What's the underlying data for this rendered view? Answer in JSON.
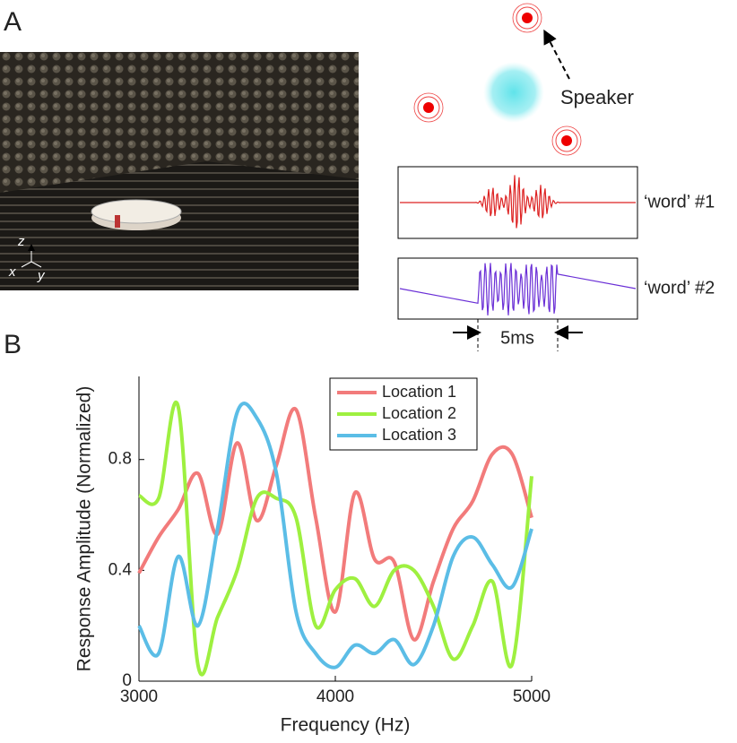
{
  "panel_a": {
    "label": "A",
    "axis_labels": [
      "z",
      "x",
      "y"
    ],
    "speaker": "Speaker",
    "word1": "‘word’ #1",
    "word2": "‘word’ #2",
    "duration": "5ms"
  },
  "panel_b": {
    "label": "B"
  },
  "chart_data": {
    "type": "line",
    "x_label": "Frequency (Hz)",
    "y_label": "Response Amplitude (Normalized)",
    "x": [
      3000,
      3100,
      3200,
      3300,
      3400,
      3500,
      3600,
      3700,
      3800,
      3900,
      4000,
      4100,
      4200,
      4300,
      4400,
      4500,
      4600,
      4700,
      4800,
      4900,
      5000
    ],
    "series": [
      {
        "name": "Location 1",
        "color": "#f27b7b",
        "values": [
          0.39,
          0.52,
          0.62,
          0.75,
          0.53,
          0.86,
          0.58,
          0.78,
          0.98,
          0.59,
          0.25,
          0.68,
          0.44,
          0.43,
          0.15,
          0.36,
          0.55,
          0.65,
          0.82,
          0.82,
          0.59
        ]
      },
      {
        "name": "Location 2",
        "color": "#9ef040",
        "values": [
          0.67,
          0.66,
          0.99,
          0.06,
          0.23,
          0.4,
          0.66,
          0.66,
          0.59,
          0.2,
          0.33,
          0.37,
          0.27,
          0.4,
          0.4,
          0.27,
          0.08,
          0.2,
          0.36,
          0.06,
          0.74
        ]
      },
      {
        "name": "Location 3",
        "color": "#5bbde6",
        "values": [
          0.2,
          0.1,
          0.45,
          0.2,
          0.55,
          0.97,
          0.95,
          0.75,
          0.25,
          0.1,
          0.05,
          0.13,
          0.1,
          0.15,
          0.06,
          0.2,
          0.45,
          0.52,
          0.42,
          0.34,
          0.55
        ]
      }
    ],
    "xlim": [
      3000,
      5000
    ],
    "ylim": [
      0,
      1.1
    ],
    "xticks": [
      3000,
      4000,
      5000
    ],
    "yticks": [
      0,
      0.4,
      0.8
    ],
    "legend": "top-right"
  }
}
